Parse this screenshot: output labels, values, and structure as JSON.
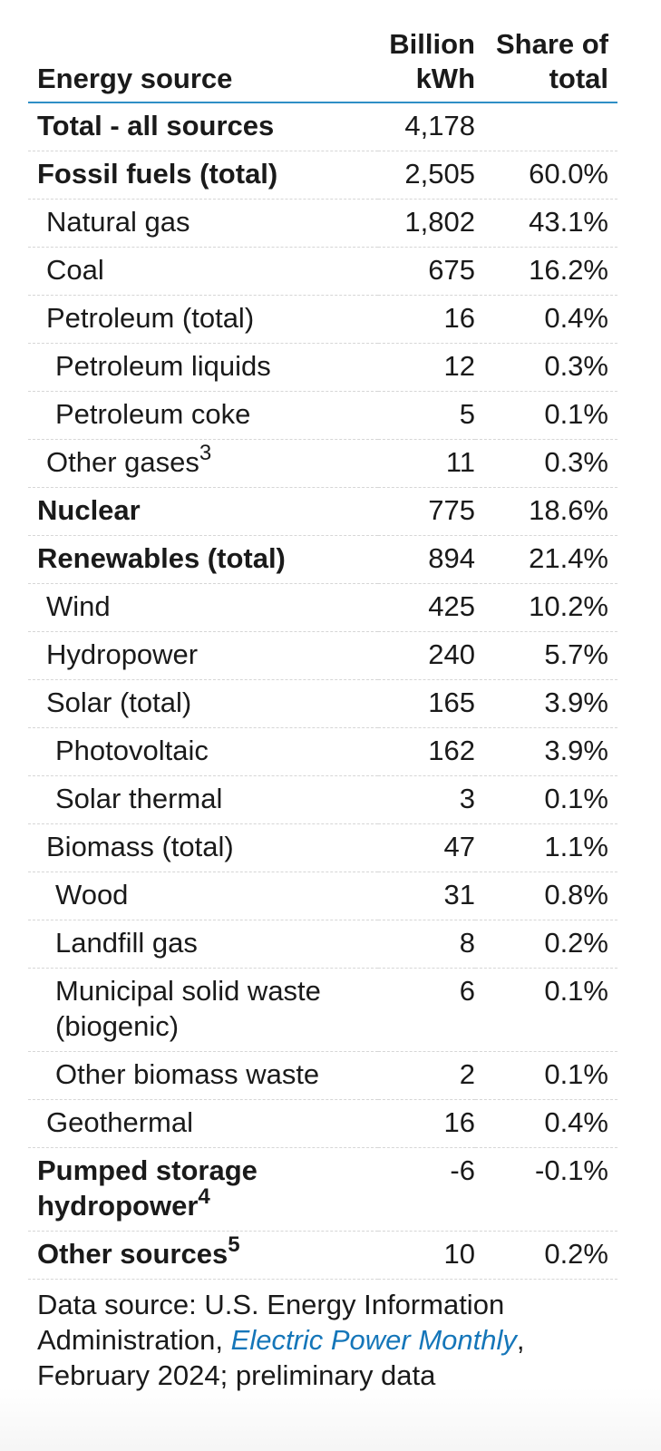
{
  "table": {
    "headers": {
      "source": "Energy source",
      "kwh": [
        "Billion",
        "kWh"
      ],
      "share": [
        "Share of",
        "total"
      ]
    },
    "rows": [
      {
        "label": "Total - all sources",
        "note": "",
        "kwh": "4,178",
        "share": "",
        "level": 0,
        "bold": true
      },
      {
        "label": "Fossil fuels (total)",
        "note": "",
        "kwh": "2,505",
        "share": "60.0%",
        "level": 0,
        "bold": true
      },
      {
        "label": "Natural gas",
        "note": "",
        "kwh": "1,802",
        "share": "43.1%",
        "level": 1,
        "bold": false
      },
      {
        "label": "Coal",
        "note": "",
        "kwh": "675",
        "share": "16.2%",
        "level": 1,
        "bold": false
      },
      {
        "label": "Petroleum (total)",
        "note": "",
        "kwh": "16",
        "share": "0.4%",
        "level": 1,
        "bold": false
      },
      {
        "label": "Petroleum liquids",
        "note": "",
        "kwh": "12",
        "share": "0.3%",
        "level": 2,
        "bold": false
      },
      {
        "label": "Petroleum coke",
        "note": "",
        "kwh": "5",
        "share": "0.1%",
        "level": 2,
        "bold": false
      },
      {
        "label": "Other gases",
        "note": "3",
        "kwh": "11",
        "share": "0.3%",
        "level": 1,
        "bold": false
      },
      {
        "label": "Nuclear",
        "note": "",
        "kwh": "775",
        "share": "18.6%",
        "level": 0,
        "bold": true
      },
      {
        "label": "Renewables (total)",
        "note": "",
        "kwh": "894",
        "share": "21.4%",
        "level": 0,
        "bold": true
      },
      {
        "label": "Wind",
        "note": "",
        "kwh": "425",
        "share": "10.2%",
        "level": 1,
        "bold": false
      },
      {
        "label": "Hydropower",
        "note": "",
        "kwh": "240",
        "share": "5.7%",
        "level": 1,
        "bold": false
      },
      {
        "label": "Solar (total)",
        "note": "",
        "kwh": "165",
        "share": "3.9%",
        "level": 1,
        "bold": false
      },
      {
        "label": "Photovoltaic",
        "note": "",
        "kwh": "162",
        "share": "3.9%",
        "level": 2,
        "bold": false
      },
      {
        "label": "Solar thermal",
        "note": "",
        "kwh": "3",
        "share": "0.1%",
        "level": 2,
        "bold": false
      },
      {
        "label": "Biomass (total)",
        "note": "",
        "kwh": "47",
        "share": "1.1%",
        "level": 1,
        "bold": false
      },
      {
        "label": "Wood",
        "note": "",
        "kwh": "31",
        "share": "0.8%",
        "level": 2,
        "bold": false
      },
      {
        "label": "Landfill gas",
        "note": "",
        "kwh": "8",
        "share": "0.2%",
        "level": 2,
        "bold": false
      },
      {
        "label": "Municipal solid waste (biogenic)",
        "note": "",
        "kwh": "6",
        "share": "0.1%",
        "level": 2,
        "bold": false
      },
      {
        "label": "Other biomass waste",
        "note": "",
        "kwh": "2",
        "share": "0.1%",
        "level": 2,
        "bold": false
      },
      {
        "label": "Geothermal",
        "note": "",
        "kwh": "16",
        "share": "0.4%",
        "level": 1,
        "bold": false
      },
      {
        "label": "Pumped storage hydropower",
        "note": "4",
        "kwh": "-6",
        "share": "-0.1%",
        "level": 0,
        "bold": true
      },
      {
        "label": "Other sources",
        "note": "5",
        "kwh": "10",
        "share": "0.2%",
        "level": 0,
        "bold": true
      }
    ]
  },
  "footer": {
    "prefix": "Data source: U.S. Energy Information Administration, ",
    "link_text": "Electric Power Monthly",
    "suffix": ", February 2024; preliminary data"
  },
  "colors": {
    "header_rule": "#2f8fc6",
    "link": "#1576b9",
    "row_divider": "#d6d6d6"
  }
}
